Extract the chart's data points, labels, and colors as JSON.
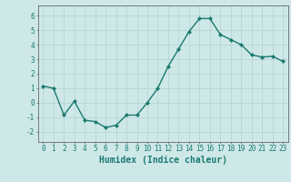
{
  "x": [
    0,
    1,
    2,
    3,
    4,
    5,
    6,
    7,
    8,
    9,
    10,
    11,
    12,
    13,
    14,
    15,
    16,
    17,
    18,
    19,
    20,
    21,
    22,
    23
  ],
  "y": [
    1.15,
    1.0,
    -0.85,
    0.1,
    -1.2,
    -1.3,
    -1.7,
    -1.55,
    -0.85,
    -0.85,
    0.0,
    1.0,
    2.5,
    3.7,
    4.9,
    5.8,
    5.8,
    4.7,
    4.35,
    4.0,
    3.3,
    3.15,
    3.2,
    2.85
  ],
  "line_color": "#1a7a6e",
  "marker": "D",
  "marker_size": 2.2,
  "bg_color": "#cee8e8",
  "grid_color": "#b8d4d4",
  "xlabel": "Humidex (Indice chaleur)",
  "xlim": [
    -0.5,
    23.5
  ],
  "ylim": [
    -2.7,
    6.7
  ],
  "yticks": [
    -2,
    -1,
    0,
    1,
    2,
    3,
    4,
    5,
    6
  ],
  "xticks": [
    0,
    1,
    2,
    3,
    4,
    5,
    6,
    7,
    8,
    9,
    10,
    11,
    12,
    13,
    14,
    15,
    16,
    17,
    18,
    19,
    20,
    21,
    22,
    23
  ],
  "tick_label_fontsize": 5.5,
  "xlabel_fontsize": 7.0,
  "axis_color": "#1a7a6e",
  "spine_color": "#666666",
  "linewidth": 1.0
}
